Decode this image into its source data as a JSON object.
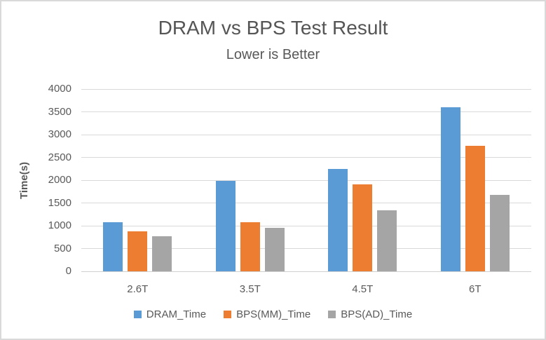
{
  "window": {
    "background": "#ffffff",
    "border_color": "#d9d9d9"
  },
  "chart_data": {
    "type": "bar",
    "title": "DRAM vs BPS Test Result",
    "subtitle": "Lower is Better",
    "ylabel": "Time(s)",
    "xlabel": "",
    "categories": [
      "2.6T",
      "3.5T",
      "4.5T",
      "6T"
    ],
    "series": [
      {
        "name": "DRAM_Time",
        "color": "#5B9BD5",
        "values": [
          1080,
          1980,
          2240,
          3600
        ]
      },
      {
        "name": "BPS(MM)_Time",
        "color": "#ED7D31",
        "values": [
          880,
          1080,
          1910,
          2750
        ]
      },
      {
        "name": "BPS(AD)_Time",
        "color": "#A5A5A5",
        "values": [
          770,
          960,
          1340,
          1680
        ]
      }
    ],
    "ylim": [
      0,
      4000
    ],
    "ytick_step": 500,
    "yticks": [
      0,
      500,
      1000,
      1500,
      2000,
      2500,
      3000,
      3500,
      4000
    ],
    "grid": true,
    "legend_position": "bottom",
    "text_color": "#595959",
    "gridline_color": "#D9D9D9"
  }
}
